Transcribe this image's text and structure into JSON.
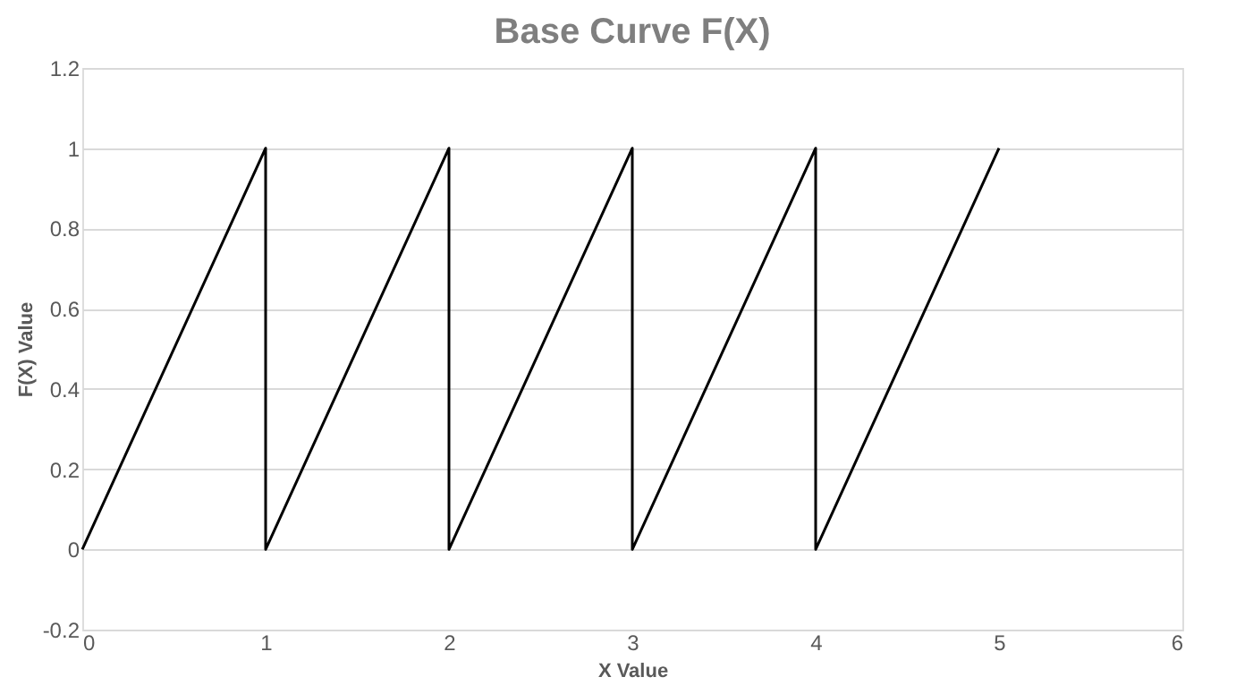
{
  "chart_data": {
    "type": "line",
    "title": "Base Curve F(X)",
    "xlabel": "X Value",
    "ylabel": "F(X) Value",
    "series": [
      {
        "color": "#000000",
        "x": [
          0,
          1,
          1,
          2,
          2,
          3,
          3,
          4,
          4,
          5
        ],
        "values": [
          0,
          1,
          0,
          1,
          0,
          1,
          0,
          1,
          0,
          1
        ]
      }
    ],
    "xlim": [
      0,
      6
    ],
    "xticks": [
      0,
      1,
      2,
      3,
      4,
      5,
      6
    ],
    "ylim": [
      -0.2,
      1.2
    ],
    "yticks": [
      -0.2,
      0,
      0.2,
      0.4,
      0.6,
      0.8,
      1,
      1.2
    ],
    "grid": "y",
    "marker": "none",
    "line_style": "solid",
    "legend": false
  }
}
